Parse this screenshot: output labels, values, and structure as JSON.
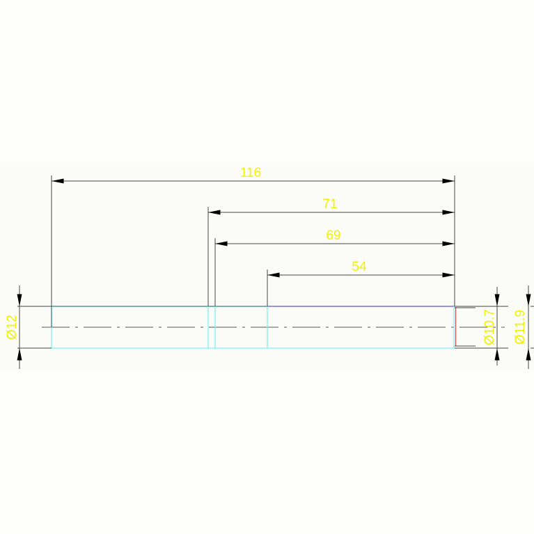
{
  "dimensions": {
    "overall_length": "116",
    "length_b": "71",
    "length_c": "69",
    "length_d": "54",
    "dia_left": "Ø12",
    "dia_right_inner": "Ø10.7",
    "dia_right_outer": "Ø11.9"
  },
  "colors": {
    "dimension_text": "#f2f200",
    "dimension_line": "#444444",
    "outline_cyan": "#7ff0f0",
    "outline_teal": "#2f7f80",
    "outline_blue": "#5a4fd0",
    "end_face_red": "#d05050"
  }
}
